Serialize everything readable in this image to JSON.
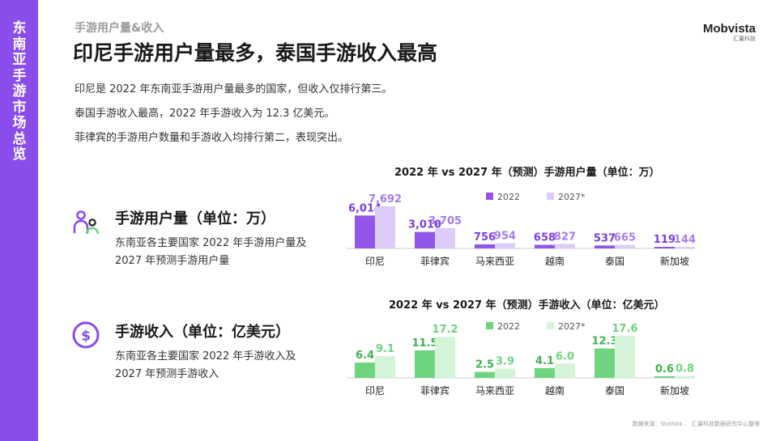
{
  "sidebar": {
    "title": "东南亚手游市场总览"
  },
  "header": {
    "kicker": "手游用户量&收入",
    "headline": "印尼手游用户量最多，泰国手游收入最高"
  },
  "logo": {
    "main": "Mobvista",
    "sub": "汇量科技"
  },
  "points": [
    "印尼是 2022 年东南亚手游用户量最多的国家，但收入仅排行第三。",
    "泰国手游收入最高，2022 年手游收入为 12.3 亿美元。",
    "菲律宾的手游用户数量和手游收入均排行第二，表现突出。"
  ],
  "sections": {
    "users": {
      "icon": "users-icon",
      "title": "手游用户量（单位：万）",
      "desc": "东南亚各主要国家 2022 年手游用户量及 2027 年预测手游用户量"
    },
    "revenue": {
      "icon": "dollar-icon",
      "title": "手游收入（单位：亿美元）",
      "desc": "东南亚各主要国家 2022 年手游收入及 2027 年预测手游收入"
    }
  },
  "source": "数据来源：Statista 、 汇量科技数据研究中心整理",
  "colors": {
    "purple": "#8a4dec",
    "purple_dark": "#9256ea",
    "purple_light": "#ddccfa",
    "green": "#6ed47f",
    "green_light": "#d4f4d9"
  },
  "chart_data": [
    {
      "type": "bar",
      "title": "2022 年 vs 2027 年（预测）手游用户量（单位：万）",
      "categories": [
        "印尼",
        "菲律宾",
        "马来西亚",
        "越南",
        "泰国",
        "新加坡"
      ],
      "series": [
        {
          "name": "2022",
          "values": [
            6014,
            3010,
            756,
            658,
            537,
            119
          ],
          "labels": [
            "6,014",
            "3,010",
            "756",
            "658",
            "537",
            "119"
          ]
        },
        {
          "name": "2027*",
          "values": [
            7692,
            3705,
            954,
            827,
            665,
            144
          ],
          "labels": [
            "7,692",
            "3,705",
            "954",
            "827",
            "665",
            "144"
          ]
        }
      ],
      "ylim": [
        0,
        7692
      ],
      "legend": "top",
      "grid": false
    },
    {
      "type": "bar",
      "title": "2022 年 vs 2027 年（预测）手游收入（单位：亿美元）",
      "categories": [
        "印尼",
        "菲律宾",
        "马来西亚",
        "越南",
        "泰国",
        "新加坡"
      ],
      "series": [
        {
          "name": "2022",
          "values": [
            6.4,
            11.5,
            2.5,
            4.1,
            12.3,
            0.6
          ],
          "labels": [
            "6.4",
            "11.5",
            "2.5",
            "4.1",
            "12.3",
            "0.6"
          ]
        },
        {
          "name": "2027*",
          "values": [
            9.1,
            17.2,
            3.9,
            6.0,
            17.6,
            0.8
          ],
          "labels": [
            "9.1",
            "17.2",
            "3.9",
            "6.0",
            "17.6",
            "0.8"
          ]
        }
      ],
      "ylim": [
        0,
        17.6
      ],
      "legend": "top",
      "grid": false
    }
  ]
}
